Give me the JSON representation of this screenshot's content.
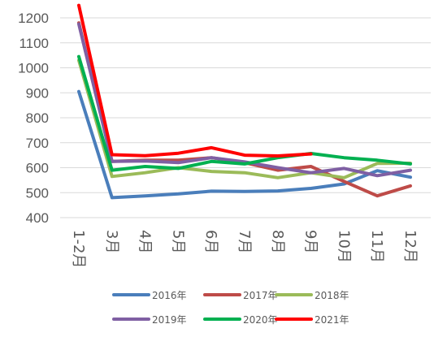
{
  "chart_data": {
    "type": "line",
    "categories": [
      "1-2月",
      "3月",
      "4月",
      "5月",
      "6月",
      "7月",
      "8月",
      "9月",
      "10月",
      "11月",
      "12月"
    ],
    "ylim": [
      400,
      1200
    ],
    "yticks": [
      400,
      500,
      600,
      700,
      800,
      900,
      1000,
      1100,
      1200
    ],
    "grid": true,
    "legend_position": "bottom",
    "series": [
      {
        "name": "2016年",
        "color": "#4A7EBB",
        "values": [
          905,
          480,
          487,
          495,
          506,
          505,
          507,
          517,
          535,
          588,
          562
        ]
      },
      {
        "name": "2017年",
        "color": "#BE4B48",
        "values": [
          1180,
          625,
          630,
          630,
          640,
          620,
          590,
          605,
          545,
          487,
          527
        ]
      },
      {
        "name": "2018年",
        "color": "#9BBB59",
        "values": [
          1030,
          565,
          580,
          600,
          585,
          580,
          560,
          580,
          560,
          617,
          618
        ]
      },
      {
        "name": "2019年",
        "color": "#7F5FA3",
        "values": [
          1175,
          625,
          627,
          620,
          640,
          623,
          600,
          580,
          597,
          568,
          590
        ]
      },
      {
        "name": "2020年",
        "color": "#00B050",
        "values": [
          1045,
          590,
          605,
          597,
          625,
          615,
          640,
          657,
          640,
          630,
          615
        ]
      },
      {
        "name": "2021年",
        "color": "#FF0000",
        "values": [
          1250,
          652,
          648,
          658,
          680,
          650,
          647,
          655,
          null,
          null,
          null
        ]
      }
    ]
  }
}
